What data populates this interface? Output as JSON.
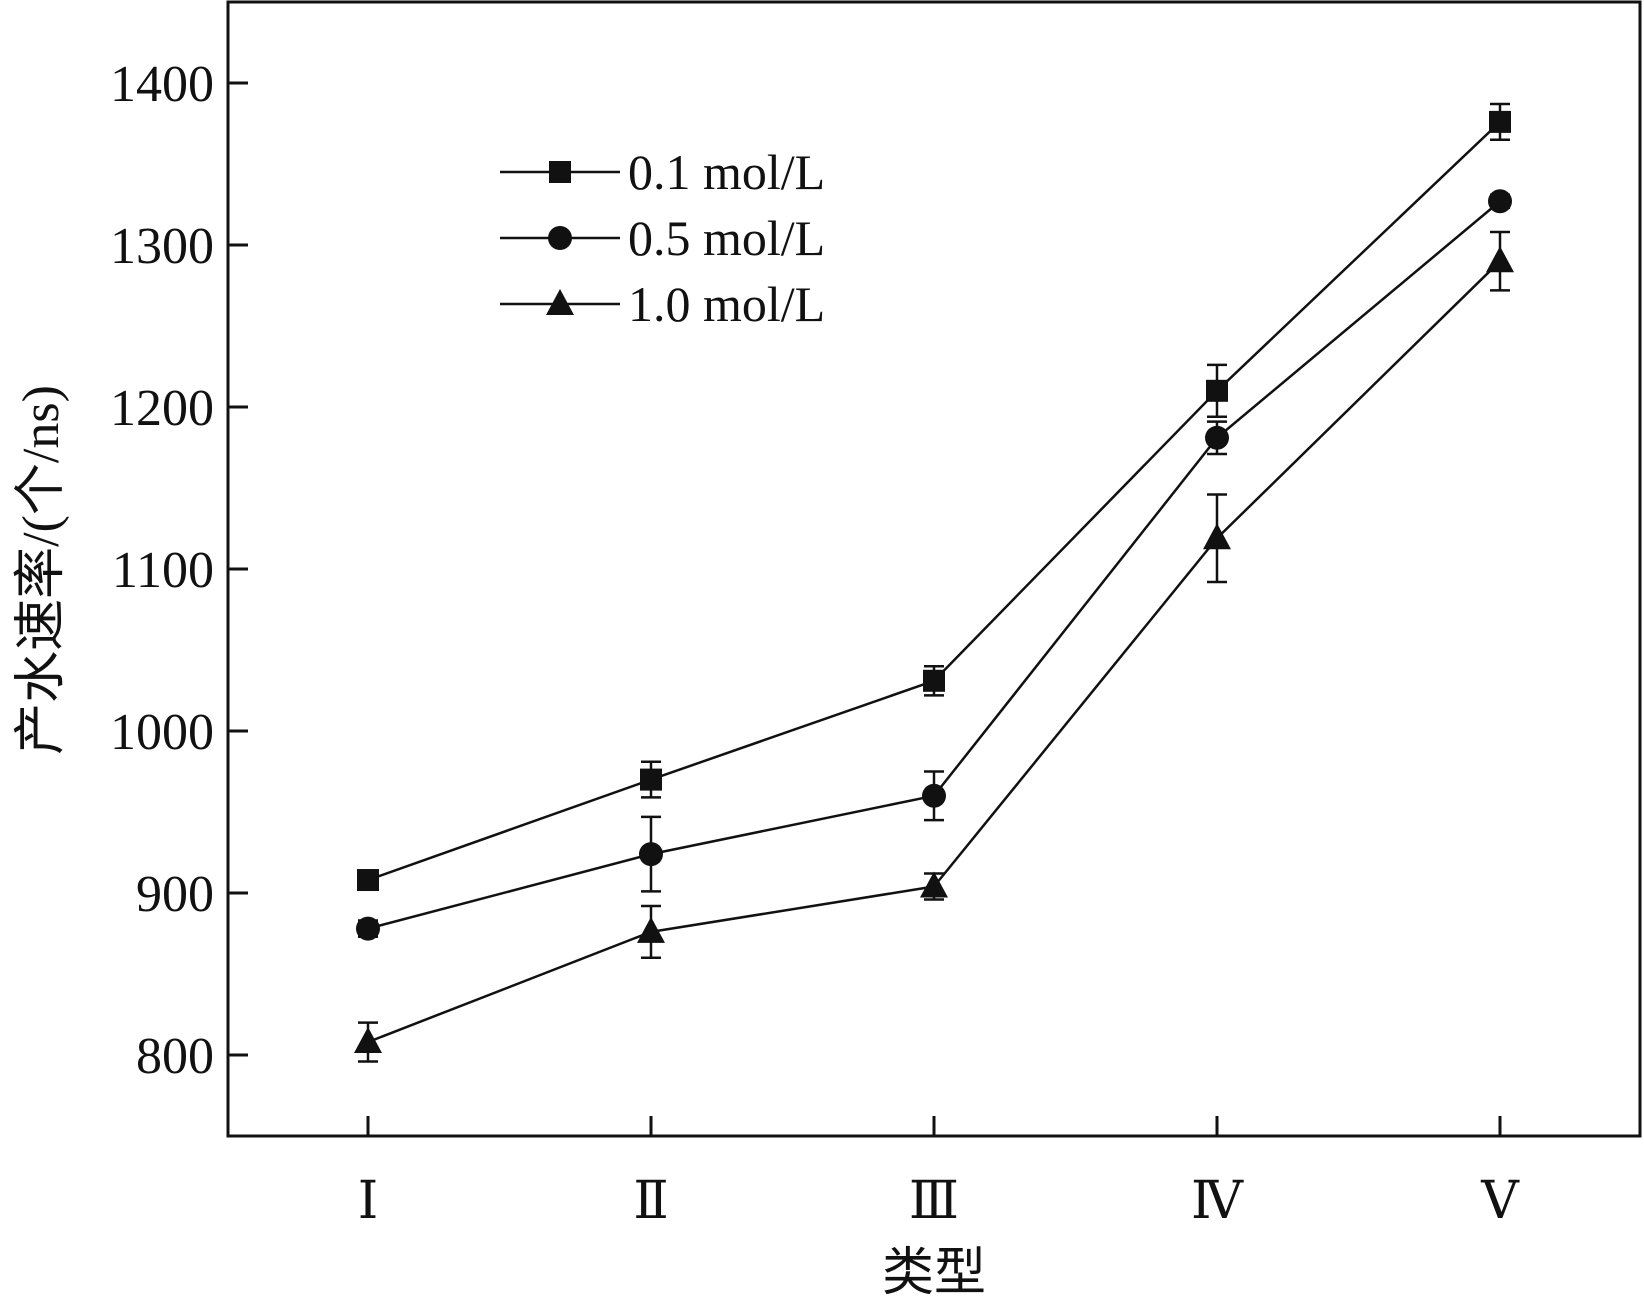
{
  "chart_data": {
    "type": "line",
    "title": "",
    "xlabel": "类型",
    "ylabel": "产水速率/(个/ns)",
    "categories": [
      "Ⅰ",
      "Ⅱ",
      "Ⅲ",
      "Ⅳ",
      "Ⅴ"
    ],
    "ylim": [
      750,
      1450
    ],
    "yticks": [
      800,
      900,
      1000,
      1100,
      1200,
      1300,
      1400
    ],
    "grid": false,
    "legend_position": "top-left",
    "series": [
      {
        "name": "0.1 mol/L",
        "marker": "square",
        "values": [
          908,
          970,
          1031,
          1210,
          1376
        ],
        "errors": [
          4,
          11,
          9,
          16,
          11
        ]
      },
      {
        "name": "0.5 mol/L",
        "marker": "circle",
        "values": [
          878,
          924,
          960,
          1181,
          1327
        ],
        "errors": [
          5,
          23,
          15,
          10,
          4
        ]
      },
      {
        "name": "1.0 mol/L",
        "marker": "triangle",
        "values": [
          808,
          876,
          904,
          1119,
          1290
        ],
        "errors": [
          12,
          16,
          8,
          27,
          18
        ]
      }
    ],
    "colors": {
      "line": "#111111",
      "axis": "#111111"
    }
  }
}
